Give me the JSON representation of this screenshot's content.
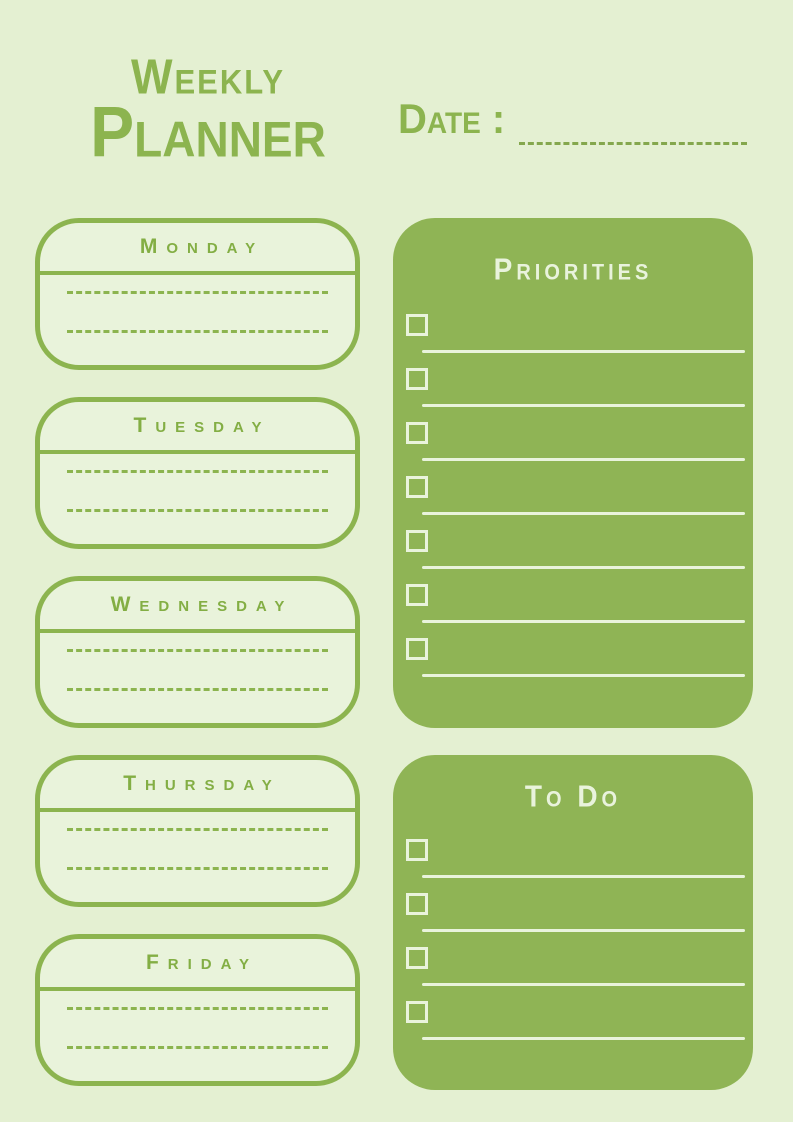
{
  "colors": {
    "page_background": "#e4f0d2",
    "card_background": "#e9f3db",
    "accent_green": "#8cb44f",
    "panel_green": "#8fb455",
    "light_on_green": "#e9f3dc"
  },
  "header": {
    "title_line1": "Weekly",
    "title_line2": "Planner",
    "date_label": "Date :"
  },
  "days": [
    "Monday",
    "Tuesday",
    "Wednesday",
    "Thursday",
    "Friday"
  ],
  "day_writing_lines_per_card": 2,
  "priorities": {
    "title": "Priorities",
    "item_count": 7
  },
  "todo": {
    "title": "To Do",
    "item_count": 4
  }
}
